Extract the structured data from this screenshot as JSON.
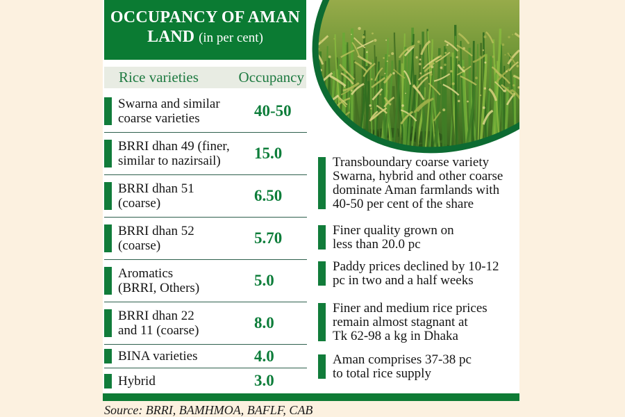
{
  "header": {
    "title_line1": "OCCUPANCY OF AMAN",
    "title_line2_bold": "LAND",
    "title_line2_note": "(in per cent)"
  },
  "table": {
    "col_variety": "Rice varieties",
    "col_occupancy": "Occupancy",
    "rows": [
      {
        "label": "Swarna and similar\ncoarse varieties",
        "value": "40-50"
      },
      {
        "label": "BRRI dhan 49 (finer,\nsimilar to nazirsail)",
        "value": "15.0"
      },
      {
        "label": "BRRI dhan 51\n(coarse)",
        "value": "6.50"
      },
      {
        "label": "BRRI dhan 52\n(coarse)",
        "value": "5.70"
      },
      {
        "label": "Aromatics\n(BRRI, Others)",
        "value": "5.0"
      },
      {
        "label": "BRRI dhan 22\nand 11 (coarse)",
        "value": "8.0"
      },
      {
        "label": "BINA varieties",
        "value": "4.0"
      },
      {
        "label": "Hybrid",
        "value": "3.0"
      }
    ]
  },
  "facts": [
    {
      "text": "Transboundary coarse variety\nSwarna, hybrid and other coarse\ndominate Aman farmlands with\n40-50 per cent of the share"
    },
    {
      "text": "Finer quality grown on\nless than 20.0 pc"
    },
    {
      "text": "Paddy prices declined by 10-12\npc in two and a half weeks"
    },
    {
      "text": "Finer and medium rice prices\nremain almost stagnant at\nTk 62-98 a kg in Dhaka"
    },
    {
      "text": "Aman comprises 37-38 pc\nto total rice supply"
    }
  ],
  "footer": {
    "source": "Source: BRRI, BAMHMOA, BAFLF, CAB"
  },
  "photo": {
    "name": "rice-paddy-field-photo"
  },
  "colors": {
    "brand_green": "#0e7b35",
    "title_bg": "#0b7b33",
    "header_row_bg": "#e8ece3",
    "header_text_green": "#1e7a41",
    "value_green": "#0d7d3a",
    "separator_line": "#2d5f4c",
    "page_cream": "#fcf1e0",
    "text_dark": "#151515",
    "photo_border_green": "#0d6b32"
  },
  "chart_data": {
    "type": "table",
    "title": "OCCUPANCY OF AMAN LAND (in per cent)",
    "columns": [
      "Rice varieties",
      "Occupancy"
    ],
    "rows": [
      [
        "Swarna and similar coarse varieties",
        "40-50"
      ],
      [
        "BRRI dhan 49 (finer, similar to nazirsail)",
        "15.0"
      ],
      [
        "BRRI dhan 51 (coarse)",
        "6.50"
      ],
      [
        "BRRI dhan 52 (coarse)",
        "5.70"
      ],
      [
        "Aromatics (BRRI, Others)",
        "5.0"
      ],
      [
        "BRRI dhan 22 and 11 (coarse)",
        "8.0"
      ],
      [
        "BINA varieties",
        "4.0"
      ],
      [
        "Hybrid",
        "3.0"
      ]
    ],
    "notes": [
      "Transboundary coarse variety Swarna, hybrid and other coarse dominate Aman farmlands with 40-50 per cent of the share",
      "Finer quality grown on less than 20.0 pc",
      "Paddy prices declined by 10-12 pc in two and a half weeks",
      "Finer and medium rice prices remain almost stagnant at Tk 62-98 a kg in Dhaka",
      "Aman comprises 37-38 pc to total rice supply"
    ],
    "source": "Source: BRRI, BAMHMOA, BAFLF, CAB"
  }
}
